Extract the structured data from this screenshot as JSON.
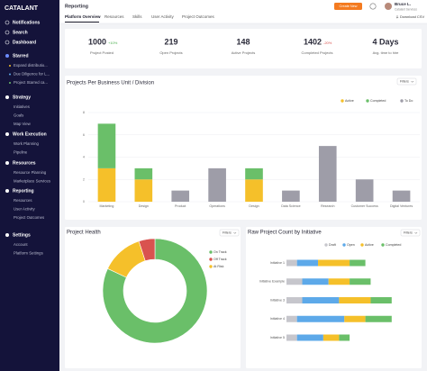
{
  "sidebar": {
    "logo": "CATALANT",
    "nav_top": [
      "Notifications",
      "Search",
      "Dashboard"
    ],
    "sections": [
      {
        "title": "Starred",
        "items": [
          "Expand distributio...",
          "Due Diligence for L...",
          "Project Starred ca..."
        ]
      },
      {
        "title": "Strategy",
        "items": [
          "Initiatives",
          "Goals",
          "Map View"
        ]
      },
      {
        "title": "Work Execution",
        "items": [
          "Work Planning",
          "Pipeline"
        ]
      },
      {
        "title": "Resources",
        "items": [
          "Resource Planning",
          "Marketplace Services"
        ]
      },
      {
        "title": "Reporting",
        "items": [
          "Resources",
          "User Activity",
          "Project Outcomes"
        ]
      },
      {
        "title": "Settings",
        "items": [
          "Account",
          "Platform Settings"
        ]
      }
    ]
  },
  "header": {
    "title": "Reporting",
    "create_button": "Create New",
    "user_name": "Bruce L.",
    "user_org": "Catalant Services",
    "download": "Download CSV"
  },
  "tabs": [
    "Platform Overview",
    "Resources",
    "Skills",
    "User Activity",
    "Project Outcomes"
  ],
  "kpis": [
    {
      "value": "1000",
      "change": "+10%",
      "label": "Project Posted"
    },
    {
      "value": "219",
      "label": "Open Projects"
    },
    {
      "value": "148",
      "label": "Active Projects"
    },
    {
      "value": "1402",
      "change": "-20%",
      "label": "Completed Projects"
    },
    {
      "value": "4 Days",
      "label": "Avg. time to hire"
    }
  ],
  "chart_data": [
    {
      "type": "bar",
      "stacked": true,
      "title": "Projects Per Business Unit / Division",
      "filter_label": "Filters",
      "categories": [
        "Marketing",
        "Design",
        "Product",
        "Operations",
        "Design",
        "Data Science",
        "Research",
        "Customer Success",
        "Digital Ventures"
      ],
      "series": [
        {
          "name": "Active",
          "color": "#f5c02a",
          "values": [
            3,
            2,
            null,
            null,
            2,
            null,
            null,
            null,
            null
          ]
        },
        {
          "name": "Completed",
          "color": "#6abf69",
          "values": [
            4,
            1,
            null,
            null,
            1,
            null,
            null,
            null,
            null
          ]
        },
        {
          "name": "To Do",
          "color": "#9e9da8",
          "values": [
            null,
            null,
            1,
            3,
            null,
            1,
            5,
            2,
            1
          ]
        }
      ],
      "ylim": [
        0,
        8
      ],
      "yticks": [
        0,
        2,
        4,
        6,
        8
      ],
      "grid": true,
      "legend": "top-right"
    },
    {
      "type": "pie",
      "donut": true,
      "title": "Project Health",
      "filter_label": "Filters",
      "categories": [
        "On Track",
        "Off Track",
        "At Risk"
      ],
      "values": [
        82,
        5,
        13
      ],
      "colors": [
        "#6abf69",
        "#d9534f",
        "#f5c02a"
      ],
      "legend": "right"
    },
    {
      "type": "hbar",
      "stacked": true,
      "title": "Raw Project Count by Initiative",
      "filter_label": "Filters",
      "categories": [
        "Initiative 1",
        "Initiative Example",
        "Initiative 3",
        "Initiative 4",
        "Initiative 5"
      ],
      "series": [
        {
          "name": "Draft",
          "color": "#c6c6cc",
          "values": [
            2,
            3,
            3,
            2,
            2
          ]
        },
        {
          "name": "Open",
          "color": "#5da9e9",
          "values": [
            4,
            5,
            7,
            9,
            5
          ]
        },
        {
          "name": "Active",
          "color": "#f5c02a",
          "values": [
            6,
            4,
            6,
            4,
            3
          ]
        },
        {
          "name": "Completed",
          "color": "#6abf69",
          "values": [
            3,
            4,
            4,
            5,
            2
          ]
        }
      ],
      "xlim": [
        0,
        25
      ],
      "legend": "top-right"
    }
  ]
}
